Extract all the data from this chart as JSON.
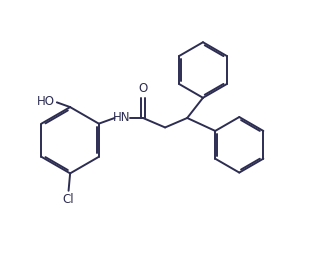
{
  "bg_color": "#ffffff",
  "line_color": "#2d2d52",
  "line_width": 1.4,
  "font_size": 8.5,
  "figsize": [
    3.17,
    2.71
  ],
  "dpi": 100,
  "xlim": [
    0,
    10
  ],
  "ylim": [
    0,
    8.5
  ]
}
